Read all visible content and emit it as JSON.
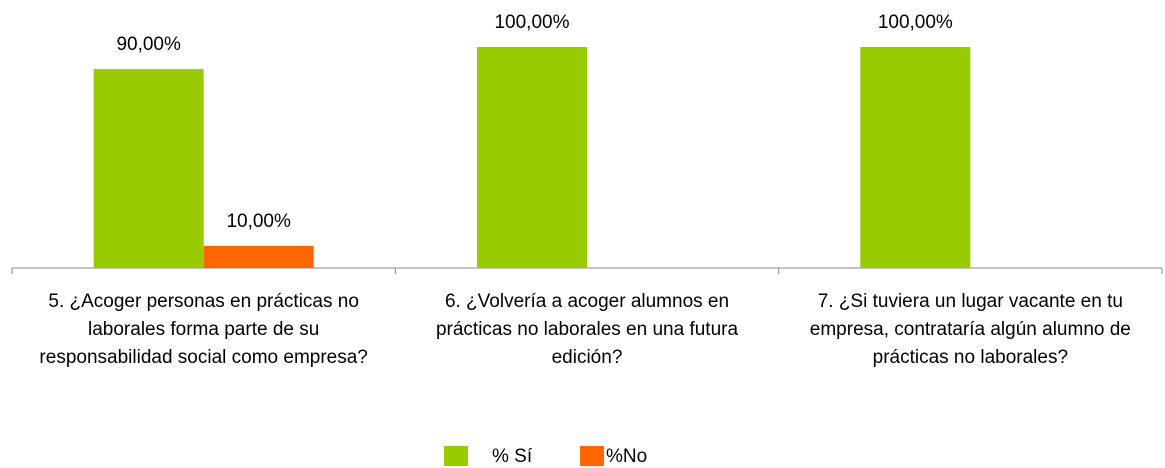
{
  "chart_data": {
    "type": "bar",
    "categories": [
      "5. ¿Acoger personas en prácticas no laborales forma parte de su responsabilidad social como empresa?",
      "6. ¿Volvería a acoger alumnos en prácticas no laborales en una futura edición?",
      "7. ¿Si tuviera un lugar vacante en tu empresa, contrataría algún alumno de prácticas no laborales?"
    ],
    "series": [
      {
        "name": "% Sí",
        "color": "#99cc00",
        "values": [
          90,
          100,
          100
        ],
        "value_labels": [
          "90,00%",
          "100,00%",
          "100,00%"
        ]
      },
      {
        "name": "%No",
        "color": "#ff6600",
        "values": [
          10,
          null,
          null
        ],
        "value_labels": [
          "10,00%",
          null,
          null
        ]
      }
    ],
    "ylim": [
      0,
      100
    ],
    "legend": "bottom"
  }
}
